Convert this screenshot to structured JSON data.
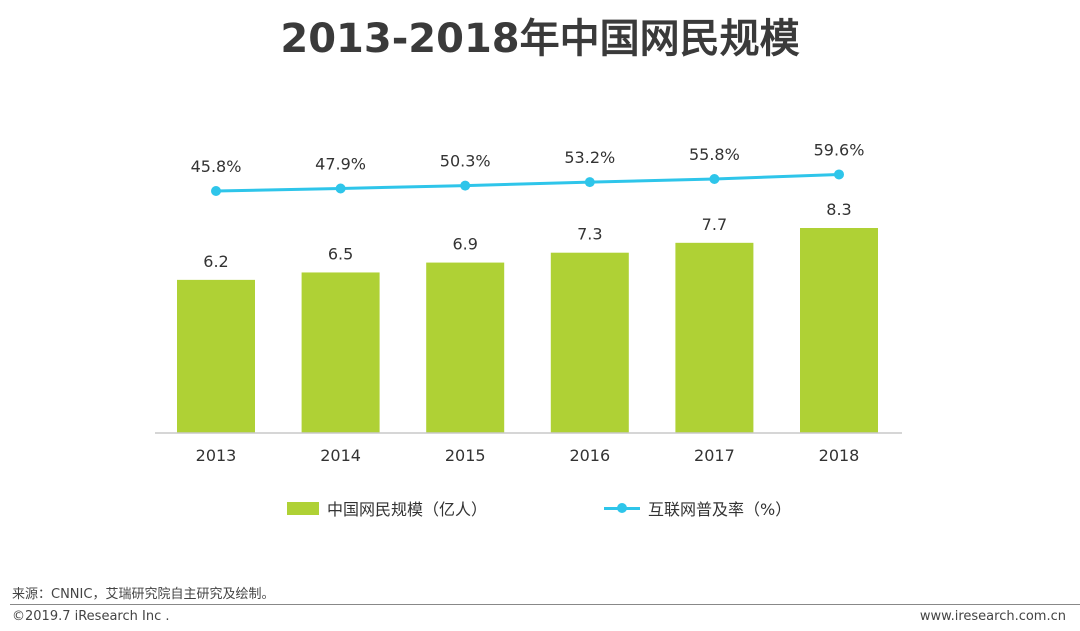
{
  "title": "2013-2018年中国网民规模",
  "chart_data": {
    "type": "bar+line",
    "categories": [
      "2013",
      "2014",
      "2015",
      "2016",
      "2017",
      "2018"
    ],
    "series": [
      {
        "name": "中国网民规模（亿人）",
        "type": "bar",
        "values": [
          6.2,
          6.5,
          6.9,
          7.3,
          7.7,
          8.3
        ],
        "labels": [
          "6.2",
          "6.5",
          "6.9",
          "7.3",
          "7.7",
          "8.3"
        ],
        "color": "#afd135"
      },
      {
        "name": "互联网普及率（%）",
        "type": "line",
        "values": [
          45.8,
          47.9,
          50.3,
          53.2,
          55.8,
          59.6
        ],
        "labels": [
          "45.8%",
          "47.9%",
          "50.3%",
          "53.2%",
          "55.8%",
          "59.6%"
        ],
        "color": "#2ec5ea"
      }
    ],
    "bar_axis_range": [
      0,
      8.3
    ],
    "line_axis_range": [
      0,
      100
    ],
    "grid": false,
    "legend_position": "bottom"
  },
  "colors": {
    "axis": "#c8c8c8",
    "label_text": "#333333"
  },
  "footer": {
    "source": "来源：CNNIC，艾瑞研究院自主研究及绘制。",
    "copyright": "©2019.7 iResearch Inc .",
    "website": "www.iresearch.com.cn"
  }
}
